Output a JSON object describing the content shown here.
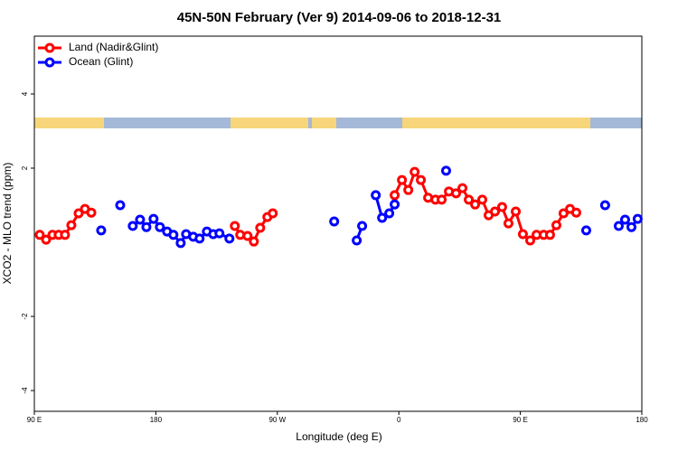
{
  "chart_data": {
    "type": "line",
    "title": "45N-50N February (Ver 9)   2014-09-06 to 2018-12-31",
    "x_label": "Longitude (deg E)",
    "y_label": "XCO2 - MLO trend (ppm)",
    "xlim": [
      90,
      540
    ],
    "ylim": [
      -4.56,
      5.56
    ],
    "xticks": [
      {
        "value": 90,
        "label": "90 E"
      },
      {
        "value": 180,
        "label": "180"
      },
      {
        "value": 270,
        "label": "90 W"
      },
      {
        "value": 360,
        "label": "0"
      },
      {
        "value": 450,
        "label": "90 E"
      },
      {
        "value": 540,
        "label": "180"
      }
    ],
    "yticks": [
      -4,
      -2,
      2,
      4
    ],
    "legend": "topleft",
    "series": [
      {
        "name": "Land (Nadir&Glint)",
        "color": "#ff0000",
        "x": [
          94,
          98.7,
          103.4,
          108,
          112.7,
          117.4,
          122.8,
          127.5,
          132.2,
          null,
          238.5,
          242.5,
          247.9,
          252.6,
          257.3,
          262.6,
          266.6,
          null,
          356.9,
          362.3,
          367,
          371.7,
          376.3,
          381.7,
          387.1,
          391.7,
          397.1,
          402.4,
          407.1,
          411.8,
          416.5,
          421.8,
          426.5,
          431.2,
          436.5,
          441.2,
          446.6,
          451.9,
          457.3,
          462,
          467.3,
          472,
          476.7,
          482,
          486.8,
          491.4
        ],
        "values": [
          0.2,
          0.07,
          0.2,
          0.2,
          0.2,
          0.46,
          0.78,
          0.9,
          0.8,
          null,
          0.44,
          0.2,
          0.17,
          0.02,
          0.39,
          0.68,
          0.78,
          null,
          1.27,
          1.68,
          1.41,
          1.9,
          1.68,
          1.2,
          1.15,
          1.15,
          1.37,
          1.32,
          1.46,
          1.15,
          1.02,
          1.15,
          0.73,
          0.83,
          0.95,
          0.51,
          0.83,
          0.22,
          0.05,
          0.2,
          0.2,
          0.2,
          0.46,
          0.78,
          0.9,
          0.8
        ]
      },
      {
        "name": "Ocean (Glint)",
        "color": "#0000ff",
        "x": [
          139.5,
          null,
          153.6,
          null,
          162.9,
          168.3,
          173,
          178.3,
          183,
          188.3,
          193,
          198.4,
          202.4,
          207.7,
          212.4,
          217.8,
          222.5,
          227.1,
          234.5,
          null,
          312.1,
          null,
          328.8,
          332.8,
          null,
          342.9,
          347.6,
          352.9,
          356.9,
          null,
          395,
          null,
          498.8,
          null,
          512.8,
          null,
          522.9,
          527.6,
          532.3,
          536.9
        ],
        "values": [
          0.32,
          null,
          1.0,
          null,
          0.44,
          0.61,
          0.41,
          0.63,
          0.41,
          0.29,
          0.2,
          -0.02,
          0.22,
          0.15,
          0.1,
          0.29,
          0.22,
          0.24,
          0.1,
          null,
          0.56,
          null,
          0.05,
          0.44,
          null,
          1.27,
          0.66,
          0.78,
          1.02,
          null,
          1.93,
          null,
          0.32,
          null,
          1.0,
          null,
          0.44,
          0.61,
          0.41,
          0.63
        ]
      }
    ]
  }
}
